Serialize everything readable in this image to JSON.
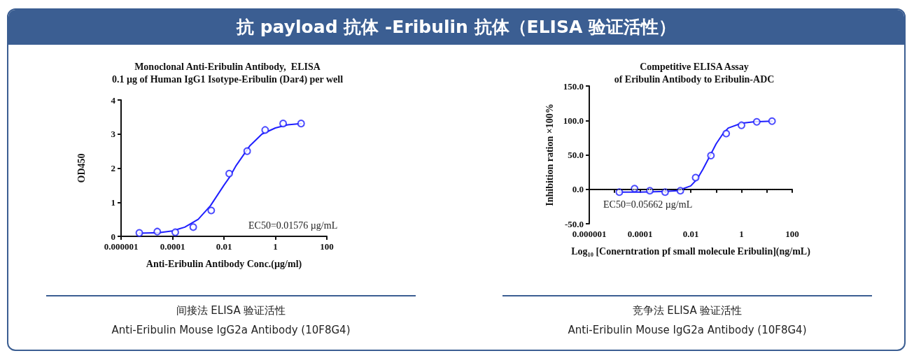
{
  "chart_data": [
    {
      "type": "other",
      "title": "抗 payload 抗体 -Eribulin 抗体（ELISA 验证活性）"
    },
    {
      "type": "scatter",
      "title": "Monoclonal Anti-Eribulin Antibody,  ELISA",
      "subtitle": "0.1 µg of Human IgG1 Isotype-Eribulin (Dar4) per well",
      "xlabel": "Anti-Eribulin Antibody Conc.(µg/ml)",
      "ylabel": "OD450",
      "log": "x",
      "marker": "circle",
      "grid": false,
      "xlim": [
        1e-06,
        100
      ],
      "xticks": [
        {
          "value": 1e-06,
          "label": "0.000001"
        },
        0.0001,
        0.01,
        1,
        100
      ],
      "ylim": [
        0,
        4
      ],
      "yticks": [
        0,
        1,
        2,
        3,
        4
      ],
      "annotations": [
        "EC50=0.01576 µg/mL",
        "间接法 ELISA 验证活性",
        "Anti-Eribulin Mouse IgG2a Antibody (10F8G4)"
      ],
      "series": [
        {
          "type": "scatter",
          "color": "#1f1fff",
          "x": [
            5.12e-06,
            2.56e-05,
            0.000128,
            0.00064,
            0.0032,
            0.016,
            0.08,
            0.4,
            2,
            10
          ],
          "values": [
            0.1,
            0.14,
            0.12,
            0.27,
            0.76,
            1.84,
            2.5,
            3.12,
            3.31,
            3.31
          ]
        },
        {
          "type": "line",
          "color": "#1f1fff",
          "marker": "none",
          "x": [
            5.1e-06,
            3e-05,
            0.0001,
            0.0003,
            0.001,
            0.003,
            0.01,
            0.016,
            0.03,
            0.1,
            0.3,
            1,
            3,
            10
          ],
          "values": [
            0.09,
            0.11,
            0.16,
            0.27,
            0.5,
            0.9,
            1.5,
            1.72,
            2.08,
            2.65,
            3.0,
            3.18,
            3.27,
            3.31
          ]
        }
      ]
    },
    {
      "type": "scatter",
      "title": "Competitive ELISA Assay",
      "subtitle": "of Eribulin Antibody to Eribulin-ADC",
      "xlabel": "Log₁₀ [Conerntration pf small molecule Eribulin](ng/mL)",
      "ylabel": "Inhibition ration ×100%",
      "log": "x",
      "marker": "circle",
      "grid": false,
      "xlim": [
        1e-06,
        100
      ],
      "xticks": [
        {
          "value": 1e-06,
          "label": "0.000001"
        },
        {
          "value": 1e-05,
          "label": null
        },
        0.0001,
        {
          "value": 0.001,
          "label": null
        },
        0.01,
        {
          "value": 0.1,
          "label": null
        },
        1,
        {
          "value": 10,
          "label": null
        },
        100
      ],
      "ylim": [
        -50,
        150
      ],
      "yticks": [
        {
          "value": -50,
          "label": "-50.0"
        },
        {
          "value": 0,
          "label": "0.0"
        },
        {
          "value": 50,
          "label": "50.0"
        },
        {
          "value": 100,
          "label": "100.0"
        },
        {
          "value": 150,
          "label": "150.0"
        }
      ],
      "ref_lines": [
        {
          "axis": "y",
          "value": 0,
          "color": "#000000",
          "line_style": "dotted"
        }
      ],
      "annotations": [
        "EC50=0.05662 µg/mL",
        "竞争法 ELISA 验证活性",
        "Anti-Eribulin Mouse IgG2a Antibody (10F8G4)"
      ],
      "series": [
        {
          "type": "scatter",
          "color": "#1f1fff",
          "x": [
            1.53e-05,
            6.1e-05,
            0.000244,
            0.000977,
            0.0039,
            0.0156,
            0.0625,
            0.25,
            1,
            4,
            16
          ],
          "values": [
            -4,
            1,
            -2,
            -4,
            -2,
            17,
            49,
            81,
            93,
            98,
            99
          ]
        },
        {
          "type": "line",
          "color": "#1f1fff",
          "marker": "none",
          "x": [
            1.53e-05,
            0.0001,
            0.001,
            0.003,
            0.01,
            0.018,
            0.03,
            0.056,
            0.1,
            0.18,
            0.3,
            1,
            3,
            16
          ],
          "values": [
            -4,
            -4,
            -3,
            -2,
            5,
            15,
            29,
            48,
            66,
            80,
            89,
            96,
            98,
            99
          ]
        }
      ]
    }
  ]
}
